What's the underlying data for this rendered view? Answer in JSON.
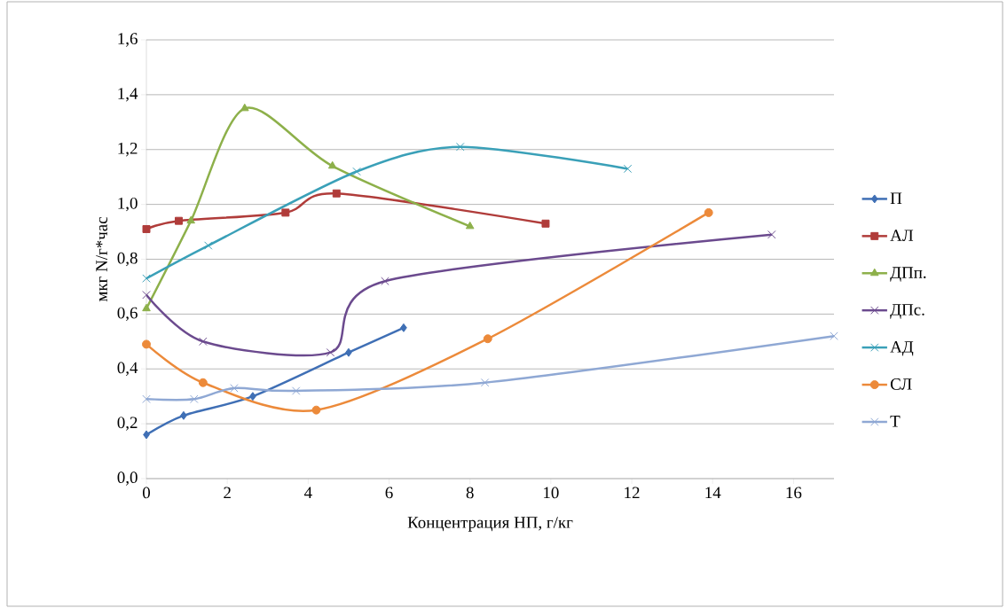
{
  "chart_data": {
    "type": "line",
    "xlabel": "Концентрация НП, г/кг",
    "ylabel": "мкг N/г*час",
    "xlim": [
      0,
      17
    ],
    "xticks": [
      0,
      2,
      4,
      6,
      8,
      10,
      12,
      14,
      16
    ],
    "ylim": [
      0,
      1.6
    ],
    "yticks": [
      {
        "value": 0,
        "label": "0,0"
      },
      {
        "value": 0.2,
        "label": "0,2"
      },
      {
        "value": 0.4,
        "label": "0,4"
      },
      {
        "value": 0.6,
        "label": "0,6"
      },
      {
        "value": 0.8,
        "label": "0,8"
      },
      {
        "value": 1.0,
        "label": "1,0"
      },
      {
        "value": 1.2,
        "label": "1,2"
      },
      {
        "value": 1.4,
        "label": "1,4"
      },
      {
        "value": 1.6,
        "label": "1,6"
      }
    ],
    "grid": "y",
    "legend": "right",
    "line_style": "solid",
    "series": [
      {
        "name": "П",
        "color": "#3f6fb5",
        "marker": "diamond",
        "x": [
          0,
          0.92,
          2.63,
          5.0,
          6.36
        ],
        "values": [
          0.16,
          0.23,
          0.3,
          0.46,
          0.55
        ]
      },
      {
        "name": "АЛ",
        "color": "#b03c3a",
        "marker": "square",
        "x": [
          0,
          0.8,
          3.44,
          4.7,
          9.87
        ],
        "values": [
          0.91,
          0.94,
          0.97,
          1.04,
          0.93
        ]
      },
      {
        "name": "ДПп.",
        "color": "#8db04a",
        "marker": "triangle",
        "x": [
          0,
          1.1,
          2.43,
          4.6,
          8.0
        ],
        "values": [
          0.62,
          0.94,
          1.35,
          1.14,
          0.92
        ]
      },
      {
        "name": "ДПс.",
        "color": "#6b4a8e",
        "marker": "cross",
        "x": [
          0,
          1.4,
          4.55,
          5.9,
          15.46
        ],
        "values": [
          0.67,
          0.5,
          0.46,
          0.72,
          0.89
        ]
      },
      {
        "name": "АД",
        "color": "#3aa0b8",
        "marker": "cross",
        "x": [
          0,
          1.53,
          5.2,
          7.76,
          11.9
        ],
        "values": [
          0.73,
          0.85,
          1.12,
          1.21,
          1.13
        ]
      },
      {
        "name": "СЛ",
        "color": "#ec8a3a",
        "marker": "circle",
        "x": [
          0,
          1.4,
          4.2,
          8.44,
          13.9
        ],
        "values": [
          0.49,
          0.35,
          0.25,
          0.51,
          0.97
        ]
      },
      {
        "name": "Т",
        "color": "#8fa8d4",
        "marker": "cross",
        "x": [
          0,
          1.18,
          2.17,
          3.7,
          8.37,
          17
        ],
        "values": [
          0.29,
          0.29,
          0.33,
          0.32,
          0.35,
          0.52
        ]
      }
    ]
  }
}
